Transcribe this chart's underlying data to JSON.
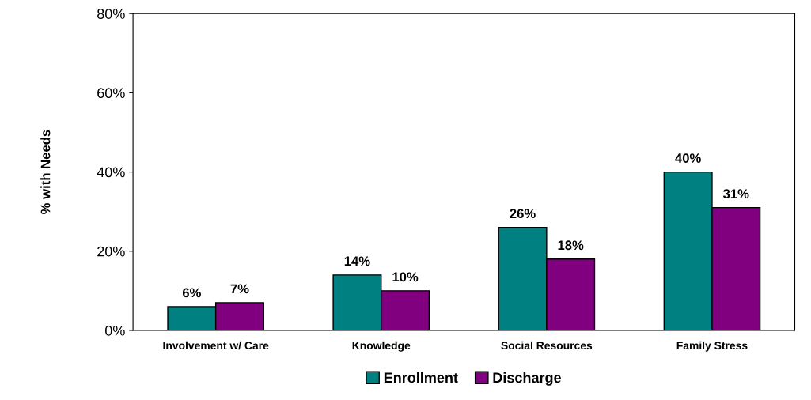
{
  "chart_data": {
    "type": "bar",
    "ylabel": "% with Needs",
    "categories": [
      "Involvement w/ Care",
      "Knowledge",
      "Social Resources",
      "Family Stress"
    ],
    "series": [
      {
        "name": "Enrollment",
        "color": "#008080",
        "values": [
          6,
          14,
          26,
          40
        ],
        "value_labels": [
          "6%",
          "14%",
          "26%",
          "40%"
        ]
      },
      {
        "name": "Discharge",
        "color": "#800080",
        "values": [
          7,
          10,
          18,
          31
        ],
        "value_labels": [
          "7%",
          "10%",
          "18%",
          "31%"
        ]
      }
    ],
    "ylim": [
      0,
      80
    ],
    "yticks": [
      {
        "value": 0,
        "label": "0%"
      },
      {
        "value": 20,
        "label": "20%"
      },
      {
        "value": 40,
        "label": "40%"
      },
      {
        "value": 60,
        "label": "60%"
      },
      {
        "value": 80,
        "label": "80%"
      }
    ],
    "grid": false,
    "legend": "bottom"
  }
}
